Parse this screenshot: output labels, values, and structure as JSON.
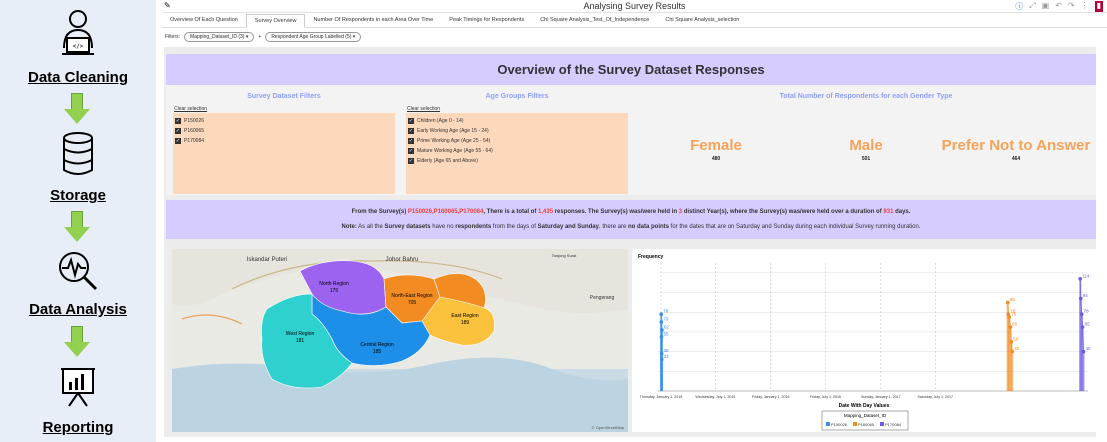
{
  "pipeline": {
    "steps": [
      {
        "label": "Data Cleaning",
        "icon": "person-laptop-icon"
      },
      {
        "label": "Storage",
        "icon": "database-icon"
      },
      {
        "label": "Data Analysis",
        "icon": "magnifier-pulse-icon"
      },
      {
        "label": "Reporting",
        "icon": "presentation-chart-icon"
      }
    ]
  },
  "app": {
    "title": "Analysing Survey Results"
  },
  "tabs": [
    "Overview Of Each Question",
    "Survey Overview",
    "Number Of Respondents in each Area Over Time",
    "Peak Timings for Respondents",
    "Chi Square Analysis_Test_Of_Independence",
    "Chi Square Analysis_selection"
  ],
  "filters": {
    "label": "Filters:",
    "chips": [
      "Mapping_Dataset_ID (3)",
      "Respondent Age Group Labelled (5)"
    ],
    "plus": "+"
  },
  "banner": {
    "title": "Overview of the Survey Dataset Responses"
  },
  "survey_filters": {
    "title": "Survey Dataset Filters",
    "clear": "Clear selection",
    "items": [
      "P150026",
      "P160065",
      "P170084"
    ]
  },
  "age_filters": {
    "title": "Age Groups Filters",
    "clear": "Clear selection",
    "items": [
      "Children (Age 0 - 14)",
      "Early Working Age (Age 15 - 24)",
      "Prime Working Age (Age 25 - 54)",
      "Mature Working Age (Age 55 - 64)",
      "Elderly (Age 65 and Above)"
    ]
  },
  "gender": {
    "title": "Total Number of Respondents for each Gender Type",
    "items": [
      {
        "name": "Female",
        "value": "480"
      },
      {
        "name": "Male",
        "value": "501"
      },
      {
        "name": "Prefer Not to Answer",
        "value": "464"
      }
    ]
  },
  "summary": {
    "l1_a": "From the Survey(s) ",
    "l1_ids": "P150026,P160065,P170084",
    "l1_b": ", There is a total of ",
    "l1_total": "1,435",
    "l1_c": " responses. The Survey(s) was/were held in ",
    "l1_years": "3",
    "l1_d": " distinct Year(s), where the Survey(s) was/were held over a duration of ",
    "l1_days": "931",
    "l1_e": " days.",
    "l2_note": "Note:",
    "l2_a": " As all the ",
    "l2_b": "Survey datasets",
    "l2_c": " have no ",
    "l2_d": "respondents",
    "l2_e": " from the days of ",
    "l2_f": "Saturday and Sunday",
    "l2_g": ", there are ",
    "l2_h": "no data points",
    "l2_i": " for the dates that are on Saturday and Sunday during each individual Survey running duration."
  },
  "map": {
    "places": [
      "Iskandar Puteri",
      "Johor Bahru",
      "Pengerang",
      "Tanjung Surat"
    ],
    "regions": [
      {
        "name": "North Region",
        "value": "175",
        "color": "#9b63f0"
      },
      {
        "name": "North-East Region",
        "value": "705",
        "color": "#f28b22"
      },
      {
        "name": "East Region",
        "value": "189",
        "color": "#f9c13c"
      },
      {
        "name": "Central Region",
        "value": "185",
        "color": "#1d8fe8"
      },
      {
        "name": "West Region",
        "value": "181",
        "color": "#2fd1cf"
      }
    ],
    "attribution": "© OpenStreetMap"
  },
  "chart_data": {
    "type": "scatter",
    "ylabel": "Frequency",
    "xlabel": "Date With Day Values",
    "x_ticks": [
      "Thursday, January 1, 2015",
      "Wednesday, July 1, 2015",
      "Friday, January 1, 2016",
      "Friday, July 1, 2016",
      "Sunday, January 1, 2017",
      "Saturday, July 1, 2017"
    ],
    "ylim": [
      0,
      130
    ],
    "legend_title": "Mapping_Dataset_ID",
    "series": [
      {
        "name": "P150026",
        "color": "#3a8ee6",
        "x": [
          0.7,
          1.1,
          1.6,
          2.0,
          2.5,
          3.0
        ],
        "values": [
          78,
          70,
          55,
          38,
          32,
          62
        ]
      },
      {
        "name": "P160065",
        "color": "#f28b22",
        "x": [
          1153,
          1155,
          1158,
          1162,
          1165,
          1168
        ],
        "values": [
          90,
          78,
          75,
          65,
          50,
          40
        ]
      },
      {
        "name": "P170084",
        "color": "#6a5be6",
        "x": [
          1394,
          1396,
          1399,
          1402,
          1405
        ],
        "values": [
          114,
          94,
          78,
          65,
          40
        ]
      }
    ],
    "x_range": [
      -10,
      1420
    ],
    "tick_positions": [
      0,
      181,
      365,
      547,
      731,
      912
    ]
  }
}
